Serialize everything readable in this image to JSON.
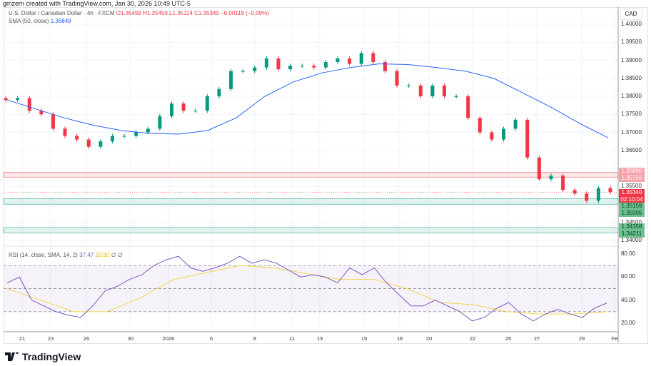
{
  "credit": "gmzern created with TradingView.com, Jan 30, 2026 10:49 UTC-5",
  "header": {
    "symbol": "U.S. Dollar / Canadian Dollar · 4h · FXCM",
    "open": "O1.35459",
    "high": "H1.35459",
    "low": "L1.35114",
    "close": "C1.35340",
    "change": "−0.00119 (−0.09%)"
  },
  "sma_legend": {
    "label": "SMA (50, close)",
    "value": "1.36849"
  },
  "rsi_legend": {
    "label": "RSI (14, close, SMA, 14, 2)",
    "rsi": "37.47",
    "sma": "29.80",
    "extra1": "∅",
    "extra2": "∅"
  },
  "currency": "CAD",
  "price_axis": [
    "1.40000",
    "1.39500",
    "1.39000",
    "1.38500",
    "1.38000",
    "1.37500",
    "1.37000",
    "1.36500",
    "1.35500",
    "1.34500",
    "1.34000"
  ],
  "rsi_axis": [
    "80.00",
    "60.00",
    "40.00",
    "20.00"
  ],
  "tags": {
    "red_zone_top": "1.35890",
    "red_zone_bottom": "1.35756",
    "last_price": "1.35340",
    "countdown": "02:10:04",
    "green1_top": "1.35159",
    "green1_bottom": "1.35005",
    "green2_top": "1.34358",
    "green2_bottom": "1.34211"
  },
  "time_axis": [
    "21",
    "23",
    "26",
    "30",
    "2026",
    "6",
    "8",
    "11",
    "13",
    "15",
    "18",
    "20",
    "22",
    "25",
    "27",
    "29",
    "Fe"
  ],
  "logo": "TradingView",
  "colors": {
    "up": "#089981",
    "down": "#f23645",
    "sma": "#2962ff",
    "rsi": "#7e57c2",
    "rsi_sma": "#f5d547"
  },
  "chart_data": {
    "type": "candlestick",
    "closes": [
      1.379,
      1.3795,
      1.376,
      1.375,
      1.371,
      1.369,
      1.368,
      1.366,
      1.3675,
      1.369,
      1.369,
      1.37,
      1.371,
      1.3745,
      1.378,
      1.376,
      1.376,
      1.38,
      1.382,
      1.387,
      1.387,
      1.388,
      1.3905,
      1.3875,
      1.3885,
      1.3885,
      1.388,
      1.3895,
      1.3905,
      1.389,
      1.392,
      1.3895,
      1.387,
      1.383,
      1.383,
      1.38,
      1.383,
      1.38,
      1.38,
      1.374,
      1.37,
      1.368,
      1.371,
      1.3735,
      1.363,
      1.357,
      1.358,
      1.354,
      1.353,
      1.351,
      1.3545,
      1.3534
    ],
    "sma": [
      1.379,
      1.3765,
      1.374,
      1.372,
      1.3705,
      1.3697,
      1.3695,
      1.3705,
      1.374,
      1.38,
      1.384,
      1.3865,
      1.388,
      1.389,
      1.3888,
      1.388,
      1.387,
      1.385,
      1.381,
      1.377,
      1.3725,
      1.3685
    ],
    "rsi": [
      55,
      60,
      40,
      35,
      30,
      27,
      25,
      35,
      48,
      52,
      58,
      62,
      70,
      75,
      78,
      68,
      65,
      68,
      72,
      78,
      72,
      75,
      72,
      66,
      60,
      62,
      60,
      55,
      68,
      62,
      68,
      55,
      45,
      35,
      35,
      40,
      35,
      30,
      22,
      25,
      33,
      38,
      28,
      22,
      28,
      32,
      28,
      25,
      33,
      37.47
    ],
    "rsi_sma": [
      50,
      40,
      30,
      30,
      42,
      58,
      64,
      70,
      68,
      63,
      58,
      58,
      50,
      38,
      36,
      30,
      28,
      28,
      29.8
    ],
    "ylim": [
      1.34,
      1.4
    ],
    "rsi_ylim": [
      20,
      80
    ]
  }
}
